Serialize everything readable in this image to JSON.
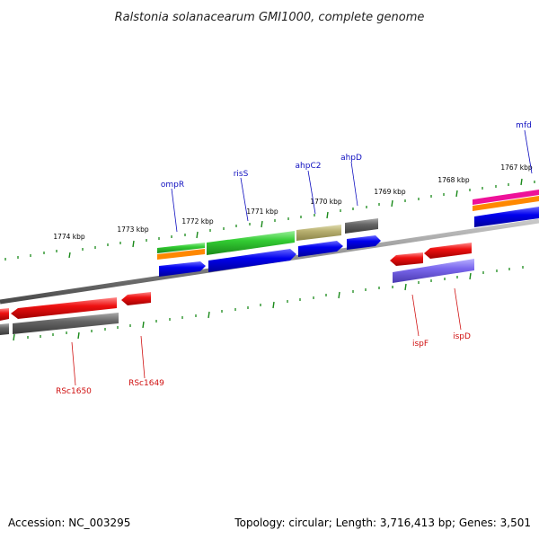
{
  "title": "Ralstonia solanacearum GMI1000, complete genome",
  "footer": {
    "accession": "Accession: NC_003295",
    "topology": "Topology: circular; Length: 3,716,413 bp; Genes: 3,501"
  },
  "kbp_labels": [
    "1774 kbp",
    "1773 kbp",
    "1772 kbp",
    "1771 kbp",
    "1770 kbp",
    "1769 kbp",
    "1768 kbp",
    "1767 kbp"
  ],
  "genes_top": [
    "ompR",
    "risS",
    "ahpC2",
    "ahpD",
    "mfd"
  ],
  "genes_bottom": [
    "RSc1650",
    "RSc1649",
    "ispF",
    "ispD"
  ],
  "colors": {
    "backbone": "#8a8a8a",
    "gene_red": "#ee1111",
    "cds_gray": "#666666",
    "cds_blue": "#0000ee",
    "green": "#33cc33",
    "orange": "#ff8800",
    "olive": "#b8b070",
    "purple": "#7b68ee",
    "magenta": "#ee1199",
    "tick": "#1a8a1a",
    "label_blue": "#1010c0",
    "label_red": "#d01010"
  }
}
